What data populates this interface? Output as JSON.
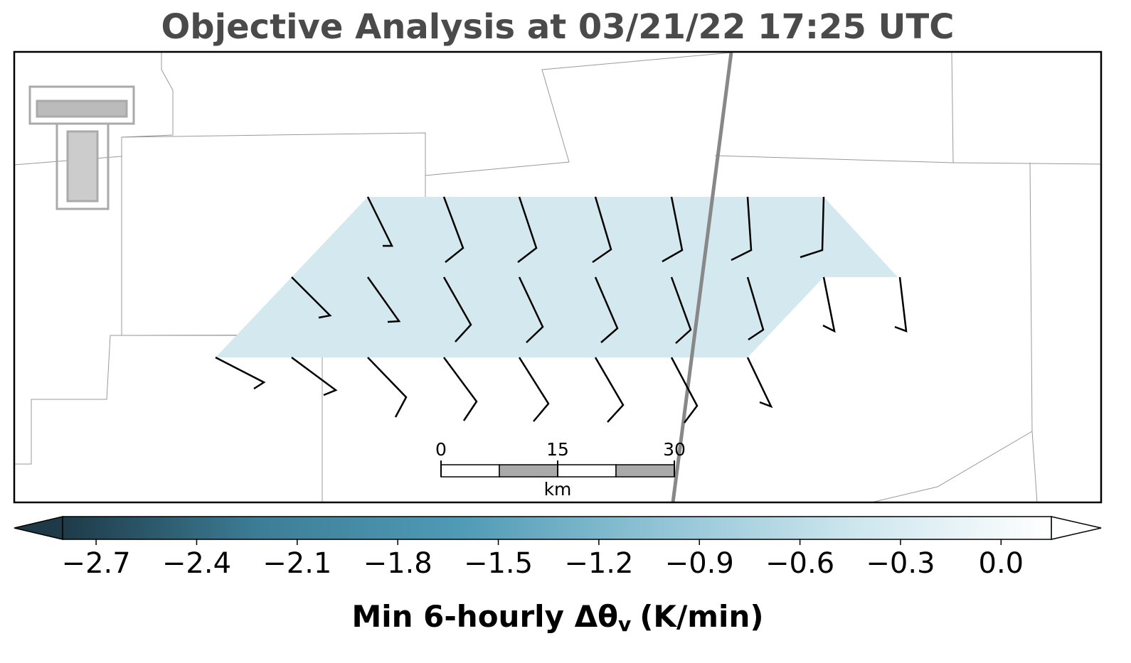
{
  "title": "Objective Analysis at 03/21/22 17:25 UTC",
  "scale_bar": {
    "ticks": [
      0,
      15,
      30
    ],
    "unit": "km"
  },
  "colorbar": {
    "lim": [
      -2.8,
      0.15
    ],
    "ticks": [
      {
        "value": -2.7,
        "label": "−2.7"
      },
      {
        "value": -2.4,
        "label": "−2.4"
      },
      {
        "value": -2.1,
        "label": "−2.1"
      },
      {
        "value": -1.8,
        "label": "−1.8"
      },
      {
        "value": -1.5,
        "label": "−1.5"
      },
      {
        "value": -1.2,
        "label": "−1.2"
      },
      {
        "value": -0.9,
        "label": "−0.9"
      },
      {
        "value": -0.6,
        "label": "−0.6"
      },
      {
        "value": -0.3,
        "label": "−0.3"
      },
      {
        "value": 0,
        "label": "0.0"
      }
    ],
    "colors": [
      "#1e3a48",
      "#3d7e97",
      "#4f9ab5",
      "#8fc3d5",
      "#cde6ee",
      "#ffffff"
    ],
    "label": "Min 6-hourly Δθ",
    "label_subscript": "v",
    "label_suffix": "(K/min)"
  }
}
